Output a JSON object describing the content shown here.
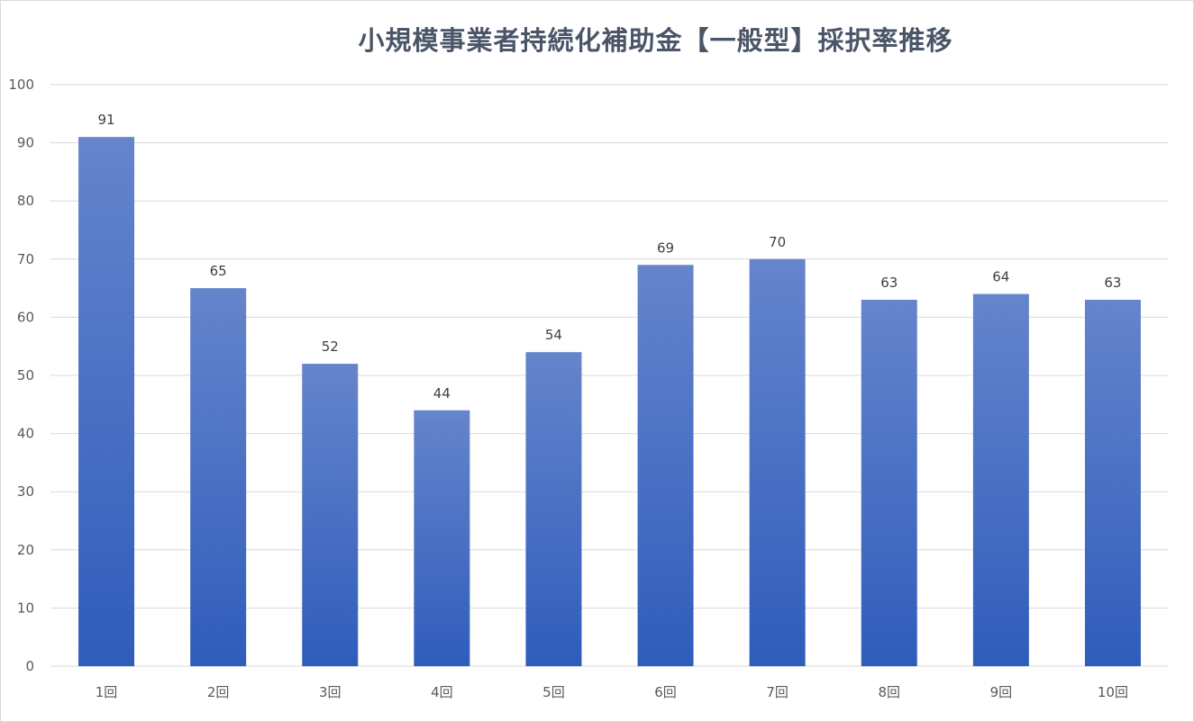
{
  "chart_data": {
    "type": "bar",
    "title": "小規模事業者持続化補助金【一般型】採択率推移",
    "categories": [
      "1回",
      "2回",
      "3回",
      "4回",
      "5回",
      "6回",
      "7回",
      "8回",
      "9回",
      "10回"
    ],
    "values": [
      91,
      65,
      52,
      44,
      54,
      69,
      70,
      63,
      64,
      63
    ],
    "ylim": [
      0,
      100
    ],
    "yticks": [
      "0",
      "10",
      "20",
      "30",
      "40",
      "50",
      "60",
      "70",
      "80",
      "90",
      "100"
    ],
    "xlabel": "",
    "ylabel": "",
    "grid": true,
    "legend": "none",
    "data_labels": true,
    "colors": {
      "bar_top": "#6585cc",
      "bar_bottom": "#2f5cbb",
      "title": "#4a5568",
      "grid": "#d9d9d9"
    }
  }
}
